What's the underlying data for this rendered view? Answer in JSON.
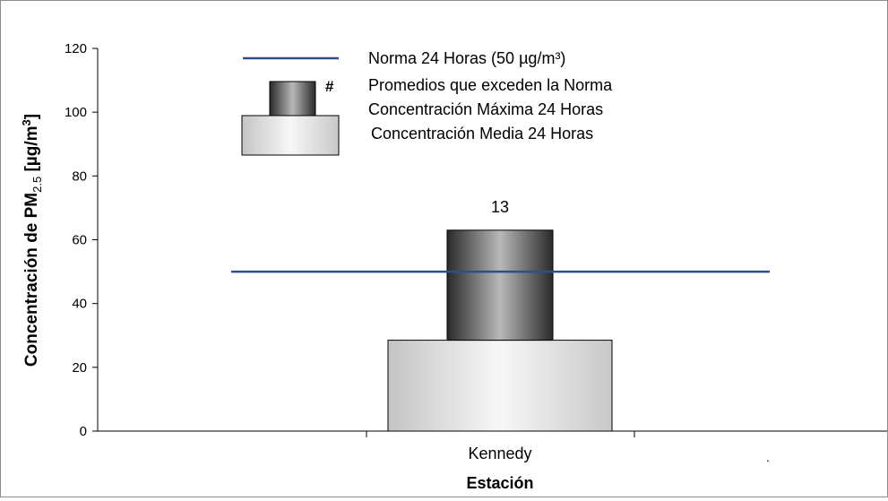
{
  "chart_data": {
    "type": "bar",
    "categories": [
      "Kennedy"
    ],
    "series": [
      {
        "name": "Concentración Media 24 Horas",
        "values": [
          28.5
        ]
      },
      {
        "name": "Concentración Máxima 24 Horas",
        "values": [
          63
        ]
      }
    ],
    "reference_line": {
      "name": "Norma 24 Horas (50 µg/m³)",
      "value": 50,
      "color": "#2E4F8F"
    },
    "exceedances": {
      "legend_symbol": "#",
      "legend_label": "Promedios que exceden la Norma",
      "values": [
        "13"
      ]
    },
    "ylabel": {
      "main": "Concentración de PM",
      "sub": "2.5",
      "unit_open": " [µg/m",
      "unit_sup": "3",
      "unit_close": "]"
    },
    "xlabel": "Estación",
    "ylim": [
      0,
      120
    ],
    "yticks": [
      "0",
      "20",
      "40",
      "60",
      "80",
      "100",
      "120"
    ],
    "legend_placement": "top-center",
    "stray_mark": ".",
    "colors": {
      "line": "#2E4F8F",
      "frame": "#8c8c8c"
    }
  }
}
